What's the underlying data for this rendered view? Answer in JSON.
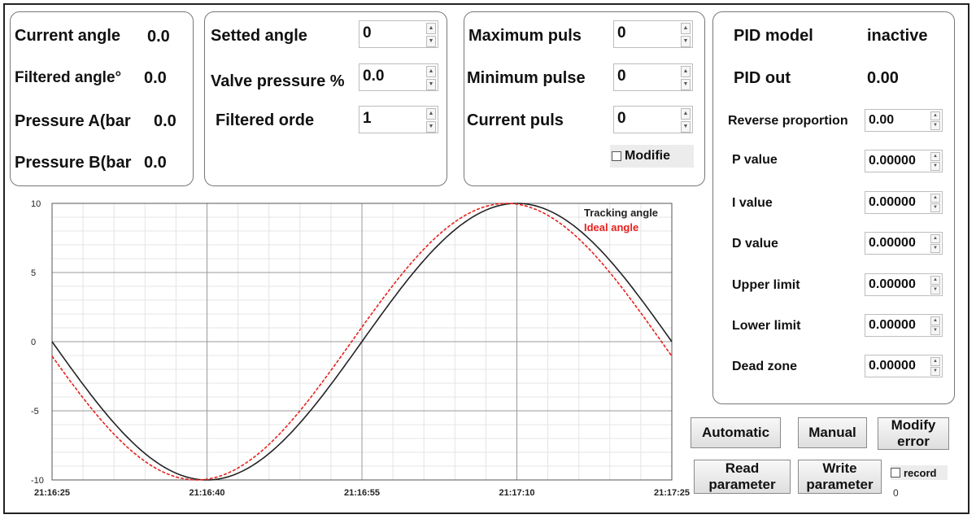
{
  "status_panel": {
    "current_angle_label": "Current angle",
    "current_angle_value": "0.0",
    "filtered_angle_label": "Filtered angle°",
    "filtered_angle_value": "0.0",
    "pressure_a_label": "Pressure  A(bar",
    "pressure_a_value": "0.0",
    "pressure_b_label": "Pressure  B(bar",
    "pressure_b_value": "0.0"
  },
  "setting_panel": {
    "setted_angle_label": "Setted angle",
    "setted_angle_value": "0",
    "valve_pressure_label": "Valve pressure %",
    "valve_pressure_value": "0.0",
    "filtered_order_label": "Filtered orde",
    "filtered_order_value": "1"
  },
  "pulse_panel": {
    "max_pulse_label": "Maximum puls",
    "max_pulse_value": "0",
    "min_pulse_label": "Minimum pulse",
    "min_pulse_value": "0",
    "current_pulse_label": "Current puls",
    "current_pulse_value": "0",
    "modify_label": "Modifie"
  },
  "pid_panel": {
    "model_label": "PID model",
    "model_value": "inactive",
    "out_label": "PID out",
    "out_value": "0.00",
    "reverse_label": "Reverse proportion",
    "reverse_value": "0.00",
    "p_label": "P value",
    "p_value": "0.00000",
    "i_label": "I value",
    "i_value": "0.00000",
    "d_label": "D value",
    "d_value": "0.00000",
    "upper_label": "Upper limit",
    "upper_value": "0.00000",
    "lower_label": "Lower limit",
    "lower_value": "0.00000",
    "dead_label": "Dead zone",
    "dead_value": "0.00000"
  },
  "buttons": {
    "automatic": "Automatic",
    "manual": "Manual",
    "modify_error_1": "Modify",
    "modify_error_2": "error",
    "read_param_1": "Read",
    "read_param_2": "parameter",
    "write_param_1": "Write",
    "write_param_2": "parameter",
    "record_label": "record",
    "record_count": "0"
  },
  "colors": {
    "tracking": "#222222",
    "ideal": "#e8211c",
    "grid_major": "#9a9a9a",
    "grid_minor": "#e4e4e4"
  },
  "chart_data": {
    "type": "line",
    "x_ticks": [
      "21:16:25",
      "21:16:40",
      "21:16:55",
      "21:17:10",
      "21:17:25"
    ],
    "x_seconds_range": [
      0,
      60
    ],
    "y_ticks": [
      10,
      5,
      0,
      -5,
      -10
    ],
    "ylim": [
      -10,
      10
    ],
    "series": [
      {
        "name": "Tracking angle",
        "color": "#222222",
        "dashed": false,
        "amplitude": 10,
        "period_s": 60,
        "phase_s": 0
      },
      {
        "name": "Ideal angle",
        "color": "#e8211c",
        "dashed": true,
        "amplitude": 10,
        "period_s": 60,
        "phase_s": 1
      }
    ],
    "legend_position": "top-right"
  }
}
